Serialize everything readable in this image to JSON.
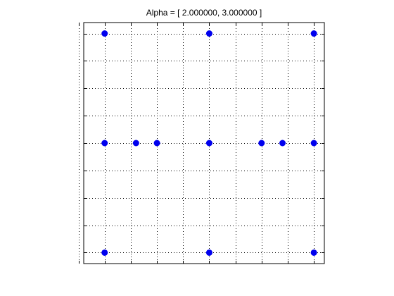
{
  "chart_data": {
    "type": "scatter",
    "title": "Alpha = [ 2.000000, 3.000000 ]",
    "xlabel": "",
    "ylabel": "",
    "xlim": [
      -0.1,
      1.05
    ],
    "ylim": [
      -0.05,
      1.05
    ],
    "grid": true,
    "tick_labels_visible": false,
    "x_ticks": [
      -0.125,
      0,
      0.125,
      0.25,
      0.375,
      0.5,
      0.625,
      0.75,
      0.875,
      1
    ],
    "y_ticks": [
      0,
      0.125,
      0.25,
      0.375,
      0.5,
      0.625,
      0.75,
      0.875,
      1
    ],
    "marker_color": "#0000ee",
    "series": [
      {
        "x": [
          0,
          0.5,
          1,
          0,
          0.15,
          0.25,
          0.5,
          0.75,
          0.85,
          1,
          0,
          0.5,
          1
        ],
        "y": [
          1,
          1,
          1,
          0.5,
          0.5,
          0.5,
          0.5,
          0.5,
          0.5,
          0.5,
          0,
          0,
          0
        ]
      }
    ]
  }
}
